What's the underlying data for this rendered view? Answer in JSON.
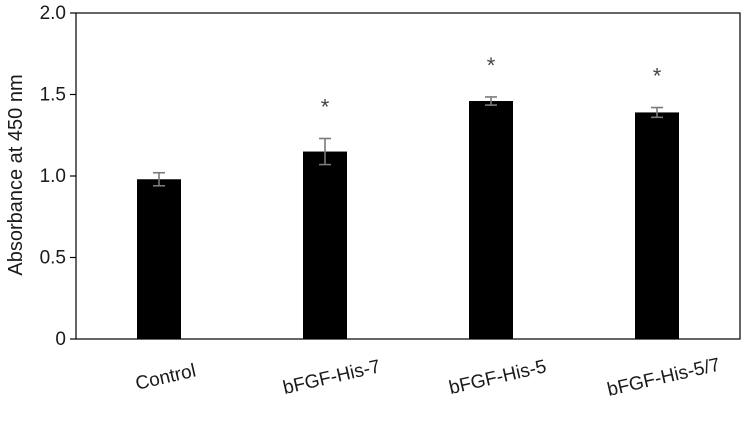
{
  "chart_data": {
    "type": "bar",
    "title": "",
    "xlabel": "",
    "ylabel": "Absorbance at 450 nm",
    "ylim": [
      0,
      2.0
    ],
    "yticks": [
      "0",
      "0.5",
      "1.0",
      "1.5",
      "2.0"
    ],
    "yticks_values": [
      0,
      0.5,
      1.0,
      1.5,
      2.0
    ],
    "grid": false,
    "categories": [
      "Control",
      "bFGF-His-7",
      "bFGF-His-5",
      "bFGF-His-5/7"
    ],
    "values": [
      0.98,
      1.15,
      1.46,
      1.39
    ],
    "errors": [
      0.04,
      0.08,
      0.025,
      0.03
    ],
    "annotations": [
      "",
      "*",
      "*",
      "*"
    ],
    "colors": {
      "bar": "#000000",
      "error_bar": "#7a7a7a",
      "annotation": "#444444",
      "axis": "#000000"
    }
  }
}
